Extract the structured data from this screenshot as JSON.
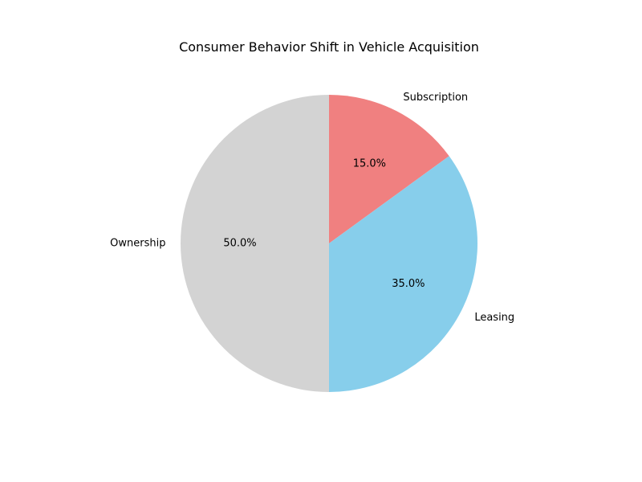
{
  "chart_data": {
    "type": "pie",
    "title": "Consumer Behavior Shift in Vehicle Acquisition",
    "slices": [
      {
        "label": "Subscription",
        "value": 15.0,
        "pct_text": "15.0%",
        "color": "#f08080"
      },
      {
        "label": "Leasing",
        "value": 35.0,
        "pct_text": "35.0%",
        "color": "#87ceeb"
      },
      {
        "label": "Ownership",
        "value": 50.0,
        "pct_text": "50.0%",
        "color": "#d3d3d3"
      }
    ],
    "start_angle_deg": 90,
    "direction": "clockwise",
    "legend": "none"
  }
}
